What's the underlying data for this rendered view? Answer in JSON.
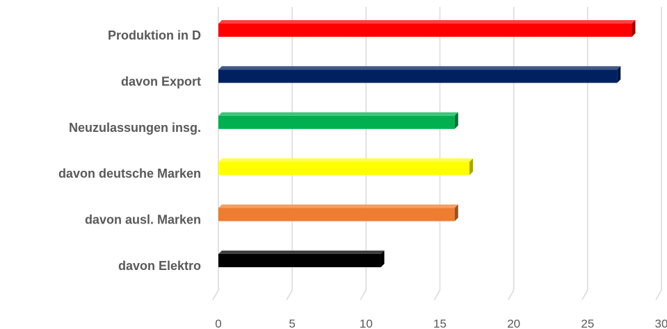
{
  "chart_data": {
    "type": "bar",
    "orientation": "horizontal",
    "style": "3d",
    "categories": [
      "Produktion in D",
      "davon Export",
      "Neuzulassungen insg.",
      "davon deutsche Marken",
      "davon ausl. Marken",
      "davon Elektro"
    ],
    "values": [
      28,
      27,
      16,
      17,
      16,
      11
    ],
    "colors": [
      "#ff0000",
      "#002060",
      "#00b050",
      "#ffff00",
      "#ed7d31",
      "#000000"
    ],
    "xlim": [
      0,
      30
    ],
    "ticks": [
      "0",
      "5",
      "10",
      "15",
      "20",
      "25",
      "30"
    ],
    "grid": true,
    "legend": "none"
  }
}
